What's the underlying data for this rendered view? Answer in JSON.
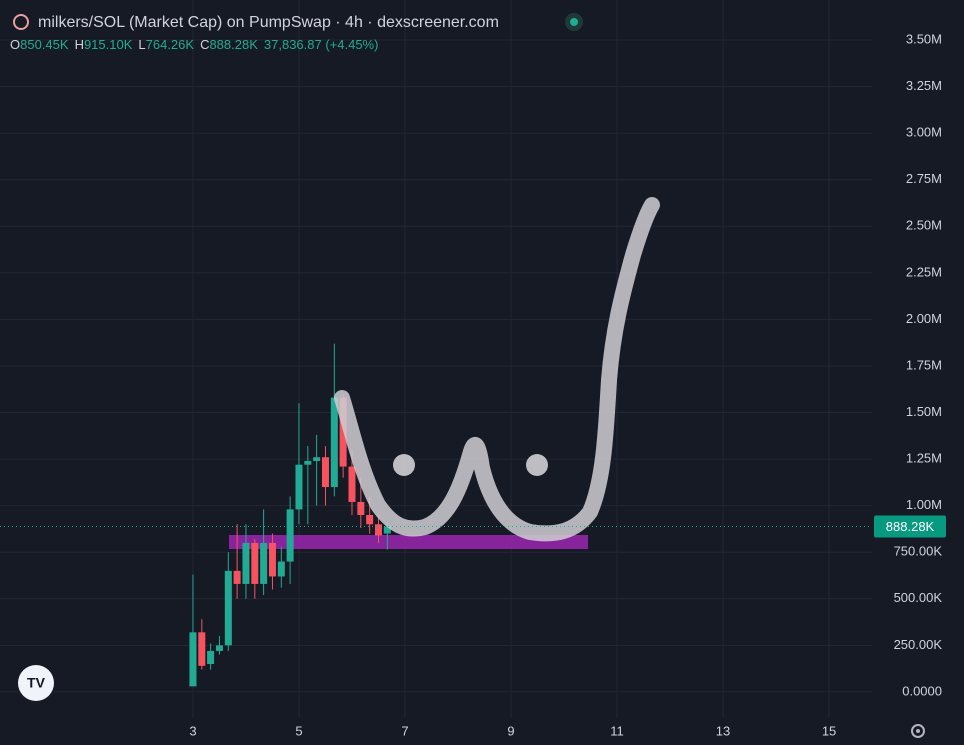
{
  "chart_data": {
    "type": "candlestick",
    "title": "milkers/SOL (Market Cap) on PumpSwap · 4h · dexscreener.com",
    "ohlc_legend": [
      {
        "key": "O",
        "text": "850.45K"
      },
      {
        "key": "H",
        "text": "915.10K"
      },
      {
        "key": "L",
        "text": "764.26K"
      },
      {
        "key": "C",
        "text": "888.28K"
      }
    ],
    "change": "37,836.87 (+4.45%)",
    "up_color": "#22ab94",
    "down_color": "#f7525f",
    "x": [
      3,
      3.167,
      3.333,
      3.5,
      3.667,
      3.833,
      4,
      4.167,
      4.333,
      4.5,
      4.667,
      4.833,
      5,
      5.167,
      5.333,
      5.5,
      5.667,
      5.833,
      6,
      6.167,
      6.333,
      6.5,
      6.667
    ],
    "open": [
      30000,
      320000,
      150000,
      220000,
      250000,
      650000,
      580000,
      800000,
      580000,
      800000,
      620000,
      700000,
      980000,
      1220000,
      1240000,
      1260000,
      1100000,
      1580000,
      1210000,
      1020000,
      950000,
      900000,
      850450
    ],
    "high": [
      630000,
      390000,
      260000,
      300000,
      750000,
      900000,
      900000,
      820000,
      980000,
      850000,
      780000,
      1050000,
      1550000,
      1320000,
      1380000,
      1320000,
      1870000,
      1600000,
      1300000,
      1150000,
      1050000,
      950000,
      915100
    ],
    "low": [
      30000,
      120000,
      120000,
      200000,
      220000,
      500000,
      500000,
      500000,
      520000,
      550000,
      560000,
      580000,
      900000,
      900000,
      1000000,
      1000000,
      1050000,
      1150000,
      950000,
      880000,
      850000,
      800000,
      764260
    ],
    "close": [
      320000,
      140000,
      220000,
      250000,
      650000,
      580000,
      800000,
      580000,
      800000,
      620000,
      700000,
      980000,
      1220000,
      1240000,
      1260000,
      1100000,
      1580000,
      1210000,
      1020000,
      950000,
      900000,
      840000,
      888280
    ],
    "xlim": [
      -0.64,
      15.81
    ],
    "xticks": [
      3,
      5,
      7,
      9,
      11,
      13,
      15
    ],
    "ylim": [
      -140000,
      3715000
    ],
    "yticks": [
      {
        "value": 0,
        "label": "0.0000"
      },
      {
        "value": 250000,
        "label": "250.00K"
      },
      {
        "value": 500000,
        "label": "500.00K"
      },
      {
        "value": 750000,
        "label": "750.00K"
      },
      {
        "value": 1000000,
        "label": "1.00M"
      },
      {
        "value": 1250000,
        "label": "1.25M"
      },
      {
        "value": 1500000,
        "label": "1.50M"
      },
      {
        "value": 1750000,
        "label": "1.75M"
      },
      {
        "value": 2000000,
        "label": "2.00M"
      },
      {
        "value": 2250000,
        "label": "2.25M"
      },
      {
        "value": 2500000,
        "label": "2.50M"
      },
      {
        "value": 2750000,
        "label": "2.75M"
      },
      {
        "value": 3000000,
        "label": "3.00M"
      },
      {
        "value": 3250000,
        "label": "3.25M"
      },
      {
        "value": 3500000,
        "label": "3.50M"
      }
    ],
    "price_line": {
      "value": 888280,
      "label": "888.28K"
    },
    "grid": true
  }
}
